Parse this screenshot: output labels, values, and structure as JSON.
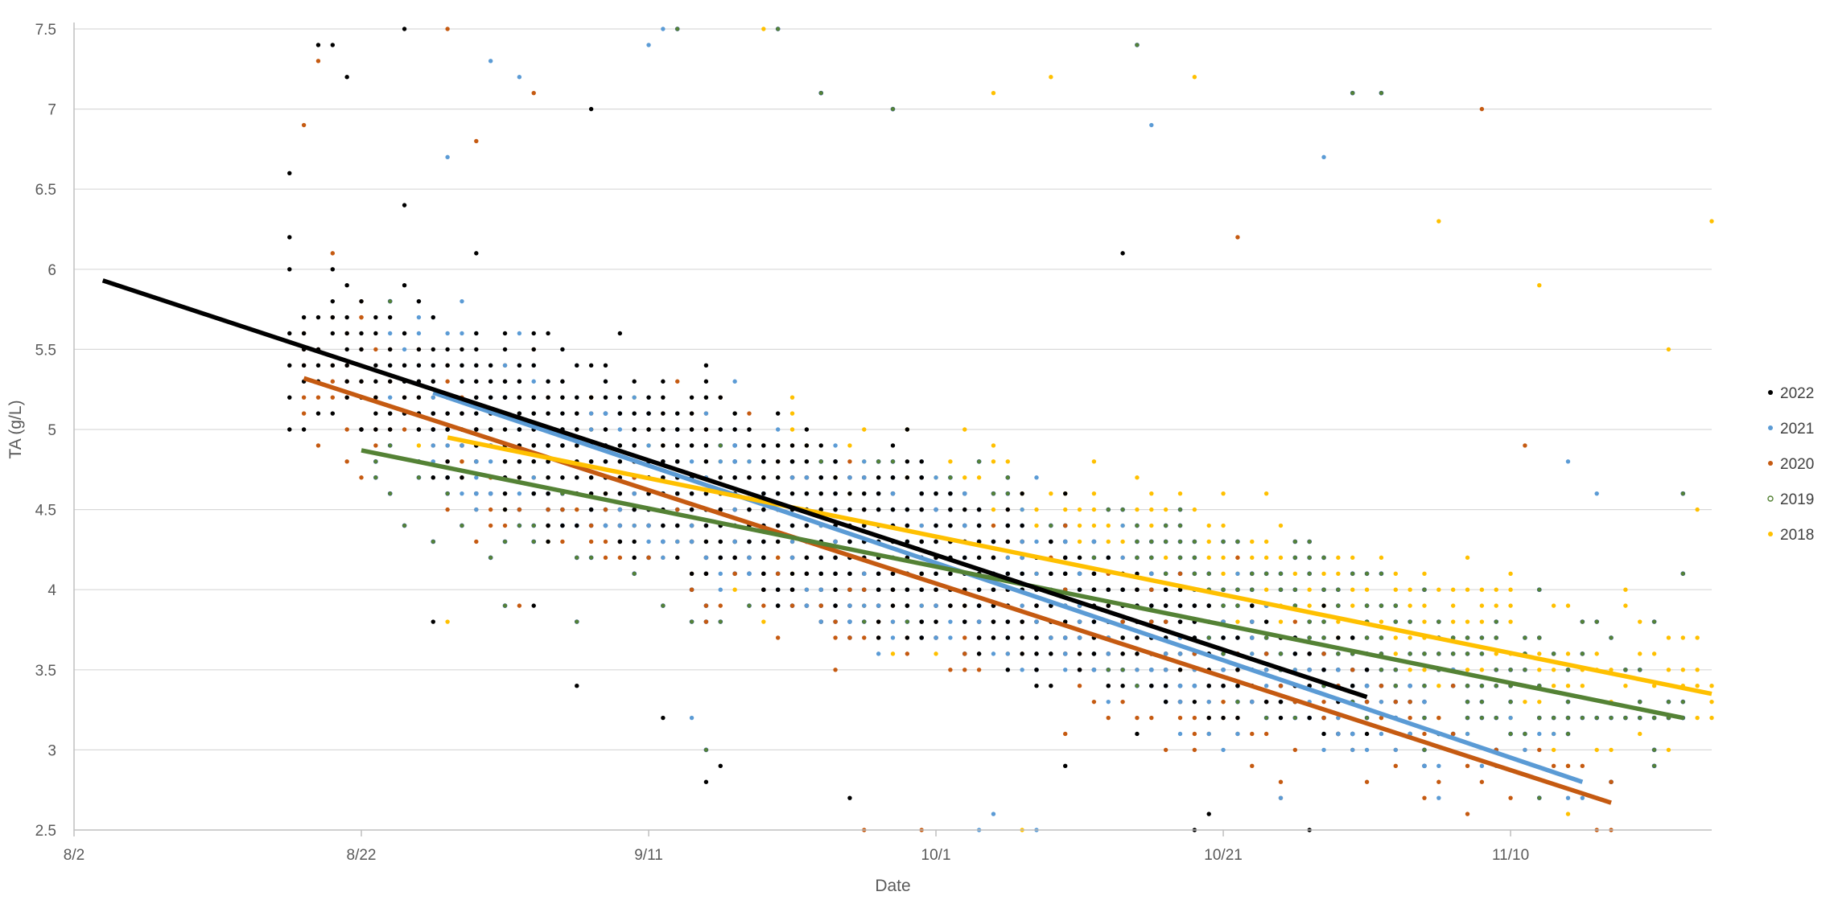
{
  "chart_data": {
    "type": "scatter",
    "title": "",
    "xlabel": "Date",
    "ylabel": "TA (g/L)",
    "x_ticks": [
      "8/2",
      "8/22",
      "9/11",
      "10/1",
      "10/21",
      "11/10"
    ],
    "x_range_dates": [
      "2022-08-02",
      "2022-11-24"
    ],
    "ylim": [
      2.5,
      7.5
    ],
    "y_ticks": [
      2.5,
      3,
      3.5,
      4,
      4.5,
      5,
      5.5,
      6,
      6.5,
      7,
      7.5
    ],
    "grid": "horizontal",
    "legend_position": "right",
    "y_step": 0.1,
    "series": [
      {
        "name": "2022",
        "color": "#000000",
        "marker": "filled-dot",
        "date_range": [
          "2022-08-17",
          "2022-10-31"
        ],
        "density_peak_date": "2022-09-15",
        "trend": {
          "x": [
            "2022-08-04",
            "2022-10-31"
          ],
          "y": [
            5.93,
            3.33
          ]
        },
        "samples": [
          [
            "2022-08-17",
            6.6
          ],
          [
            "2022-08-19",
            7.4
          ],
          [
            "2022-08-20",
            7.4
          ],
          [
            "2022-08-21",
            7.2
          ],
          [
            "2022-08-25",
            6.4
          ],
          [
            "2022-08-25",
            7.5
          ],
          [
            "2022-08-27",
            3.8
          ],
          [
            "2022-08-28",
            5.0
          ],
          [
            "2022-08-30",
            6.1
          ],
          [
            "2022-09-03",
            3.9
          ],
          [
            "2022-09-07",
            7.0
          ],
          [
            "2022-09-12",
            3.2
          ],
          [
            "2022-09-15",
            2.8
          ],
          [
            "2022-09-16",
            2.9
          ],
          [
            "2022-09-25",
            2.7
          ],
          [
            "2022-10-10",
            2.9
          ],
          [
            "2022-10-19",
            2.5
          ],
          [
            "2022-10-27",
            2.5
          ],
          [
            "2022-10-20",
            2.6
          ],
          [
            "2022-09-06",
            3.4
          ],
          [
            "2022-10-14",
            6.1
          ]
        ]
      },
      {
        "name": "2021",
        "color": "#5b9bd5",
        "marker": "filled-dot",
        "date_range": [
          "2022-08-24",
          "2022-11-16"
        ],
        "density_peak_date": "2022-09-18",
        "trend": {
          "x": [
            "2022-08-27",
            "2022-11-15"
          ],
          "y": [
            5.23,
            2.8
          ]
        },
        "samples": [
          [
            "2022-08-27",
            4.7
          ],
          [
            "2022-08-28",
            6.7
          ],
          [
            "2022-08-31",
            7.3
          ],
          [
            "2022-09-02",
            7.2
          ],
          [
            "2022-09-11",
            7.4
          ],
          [
            "2022-09-12",
            7.5
          ],
          [
            "2022-09-14",
            3.2
          ],
          [
            "2022-10-04",
            2.5
          ],
          [
            "2022-10-05",
            2.6
          ],
          [
            "2022-10-08",
            2.5
          ],
          [
            "2022-10-16",
            6.9
          ],
          [
            "2022-10-28",
            6.7
          ],
          [
            "2022-11-16",
            4.6
          ],
          [
            "2022-11-14",
            4.8
          ]
        ]
      },
      {
        "name": "2020",
        "color": "#c55a11",
        "marker": "filled-dot",
        "date_range": [
          "2022-08-18",
          "2022-11-17"
        ],
        "density_peak_date": "2022-09-20",
        "trend": {
          "x": [
            "2022-08-18",
            "2022-11-17"
          ],
          "y": [
            5.32,
            2.67
          ]
        },
        "samples": [
          [
            "2022-08-18",
            6.9
          ],
          [
            "2022-08-19",
            7.3
          ],
          [
            "2022-08-20",
            6.1
          ],
          [
            "2022-08-22",
            5.7
          ],
          [
            "2022-08-28",
            7.5
          ],
          [
            "2022-08-30",
            6.8
          ],
          [
            "2022-09-03",
            7.1
          ],
          [
            "2022-09-26",
            2.5
          ],
          [
            "2022-09-30",
            2.5
          ],
          [
            "2022-11-08",
            7.0
          ],
          [
            "2022-11-11",
            4.9
          ],
          [
            "2022-11-17",
            2.8
          ],
          [
            "2022-09-02",
            3.9
          ],
          [
            "2022-10-22",
            6.2
          ]
        ]
      },
      {
        "name": "2019",
        "color": "#548235",
        "marker": "hollow-ring",
        "date_range": [
          "2022-08-22",
          "2022-11-22"
        ],
        "density_peak_date": "2022-10-08",
        "trend": {
          "x": [
            "2022-08-22",
            "2022-11-22"
          ],
          "y": [
            4.87,
            3.2
          ]
        },
        "samples": [
          [
            "2022-08-24",
            5.8
          ],
          [
            "2022-09-13",
            7.5
          ],
          [
            "2022-09-20",
            7.5
          ],
          [
            "2022-09-23",
            7.1
          ],
          [
            "2022-09-28",
            7.0
          ],
          [
            "2022-10-15",
            7.4
          ],
          [
            "2022-10-30",
            7.1
          ],
          [
            "2022-11-01",
            7.1
          ],
          [
            "2022-11-22",
            4.1
          ],
          [
            "2022-11-20",
            3.8
          ],
          [
            "2022-11-22",
            4.6
          ],
          [
            "2022-09-15",
            3.0
          ]
        ]
      },
      {
        "name": "2018",
        "color": "#ffc000",
        "marker": "filled-dot",
        "date_range": [
          "2022-08-26",
          "2022-11-24"
        ],
        "density_peak_date": "2022-10-16",
        "trend": {
          "x": [
            "2022-08-28",
            "2022-11-24"
          ],
          "y": [
            4.95,
            3.35
          ]
        },
        "samples": [
          [
            "2022-08-28",
            3.8
          ],
          [
            "2022-09-19",
            7.5
          ],
          [
            "2022-10-05",
            7.1
          ],
          [
            "2022-10-09",
            7.2
          ],
          [
            "2022-10-19",
            7.2
          ],
          [
            "2022-11-05",
            6.3
          ],
          [
            "2022-11-12",
            5.9
          ],
          [
            "2022-11-21",
            5.5
          ],
          [
            "2022-11-24",
            6.3
          ],
          [
            "2022-11-23",
            4.5
          ],
          [
            "2022-10-07",
            2.5
          ],
          [
            "2022-11-14",
            2.6
          ]
        ]
      }
    ]
  }
}
